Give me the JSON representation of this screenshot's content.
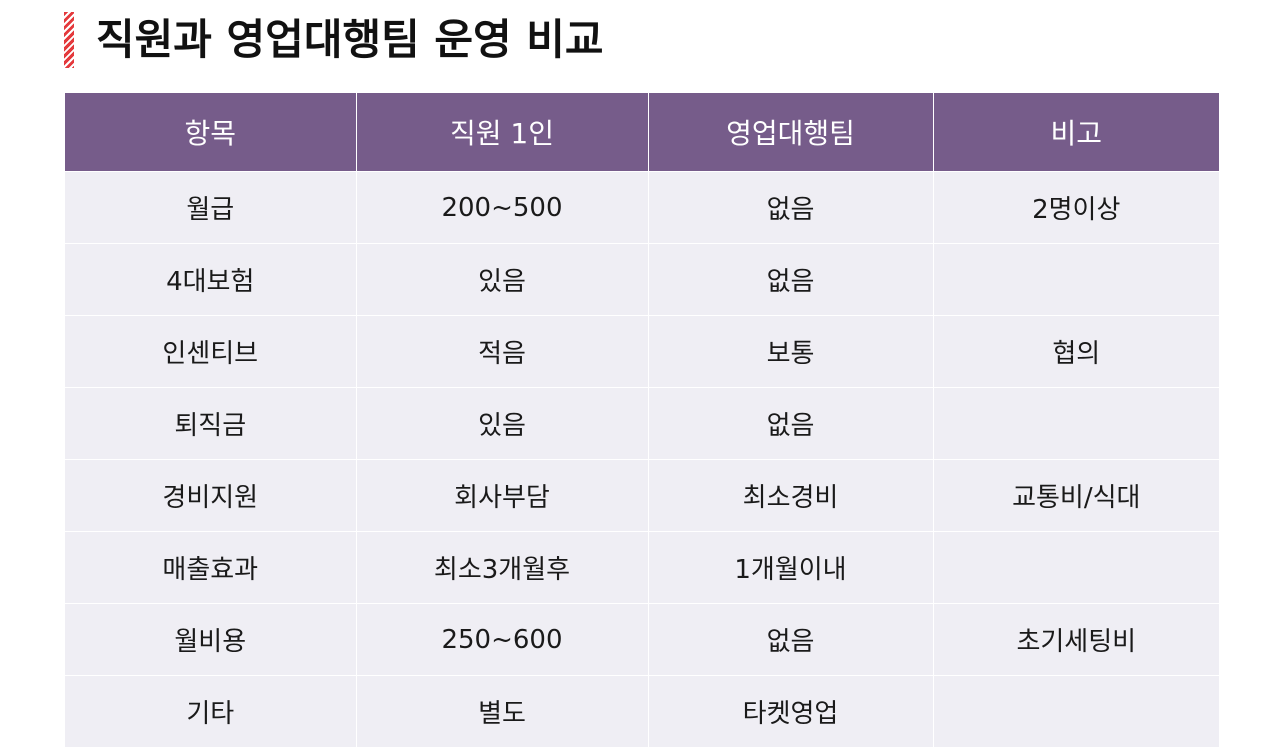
{
  "title": "직원과 영업대행팀 운영 비교",
  "colors": {
    "header_bg": "#765c8a",
    "row_bg": "#efeef4",
    "accent": "#e4393c"
  },
  "table": {
    "headers": [
      "항목",
      "직원 1인",
      "영업대행팀",
      "비고"
    ],
    "rows": [
      [
        "월급",
        "200~500",
        "없음",
        "2명이상"
      ],
      [
        "4대보험",
        "있음",
        "없음",
        ""
      ],
      [
        "인센티브",
        "적음",
        "보통",
        "협의"
      ],
      [
        "퇴직금",
        "있음",
        "없음",
        ""
      ],
      [
        "경비지원",
        "회사부담",
        "최소경비",
        "교통비/식대"
      ],
      [
        "매출효과",
        "최소3개월후",
        "1개월이내",
        ""
      ],
      [
        "월비용",
        "250~600",
        "없음",
        "초기세팅비"
      ],
      [
        "기타",
        "별도",
        "타켓영업",
        ""
      ]
    ]
  }
}
